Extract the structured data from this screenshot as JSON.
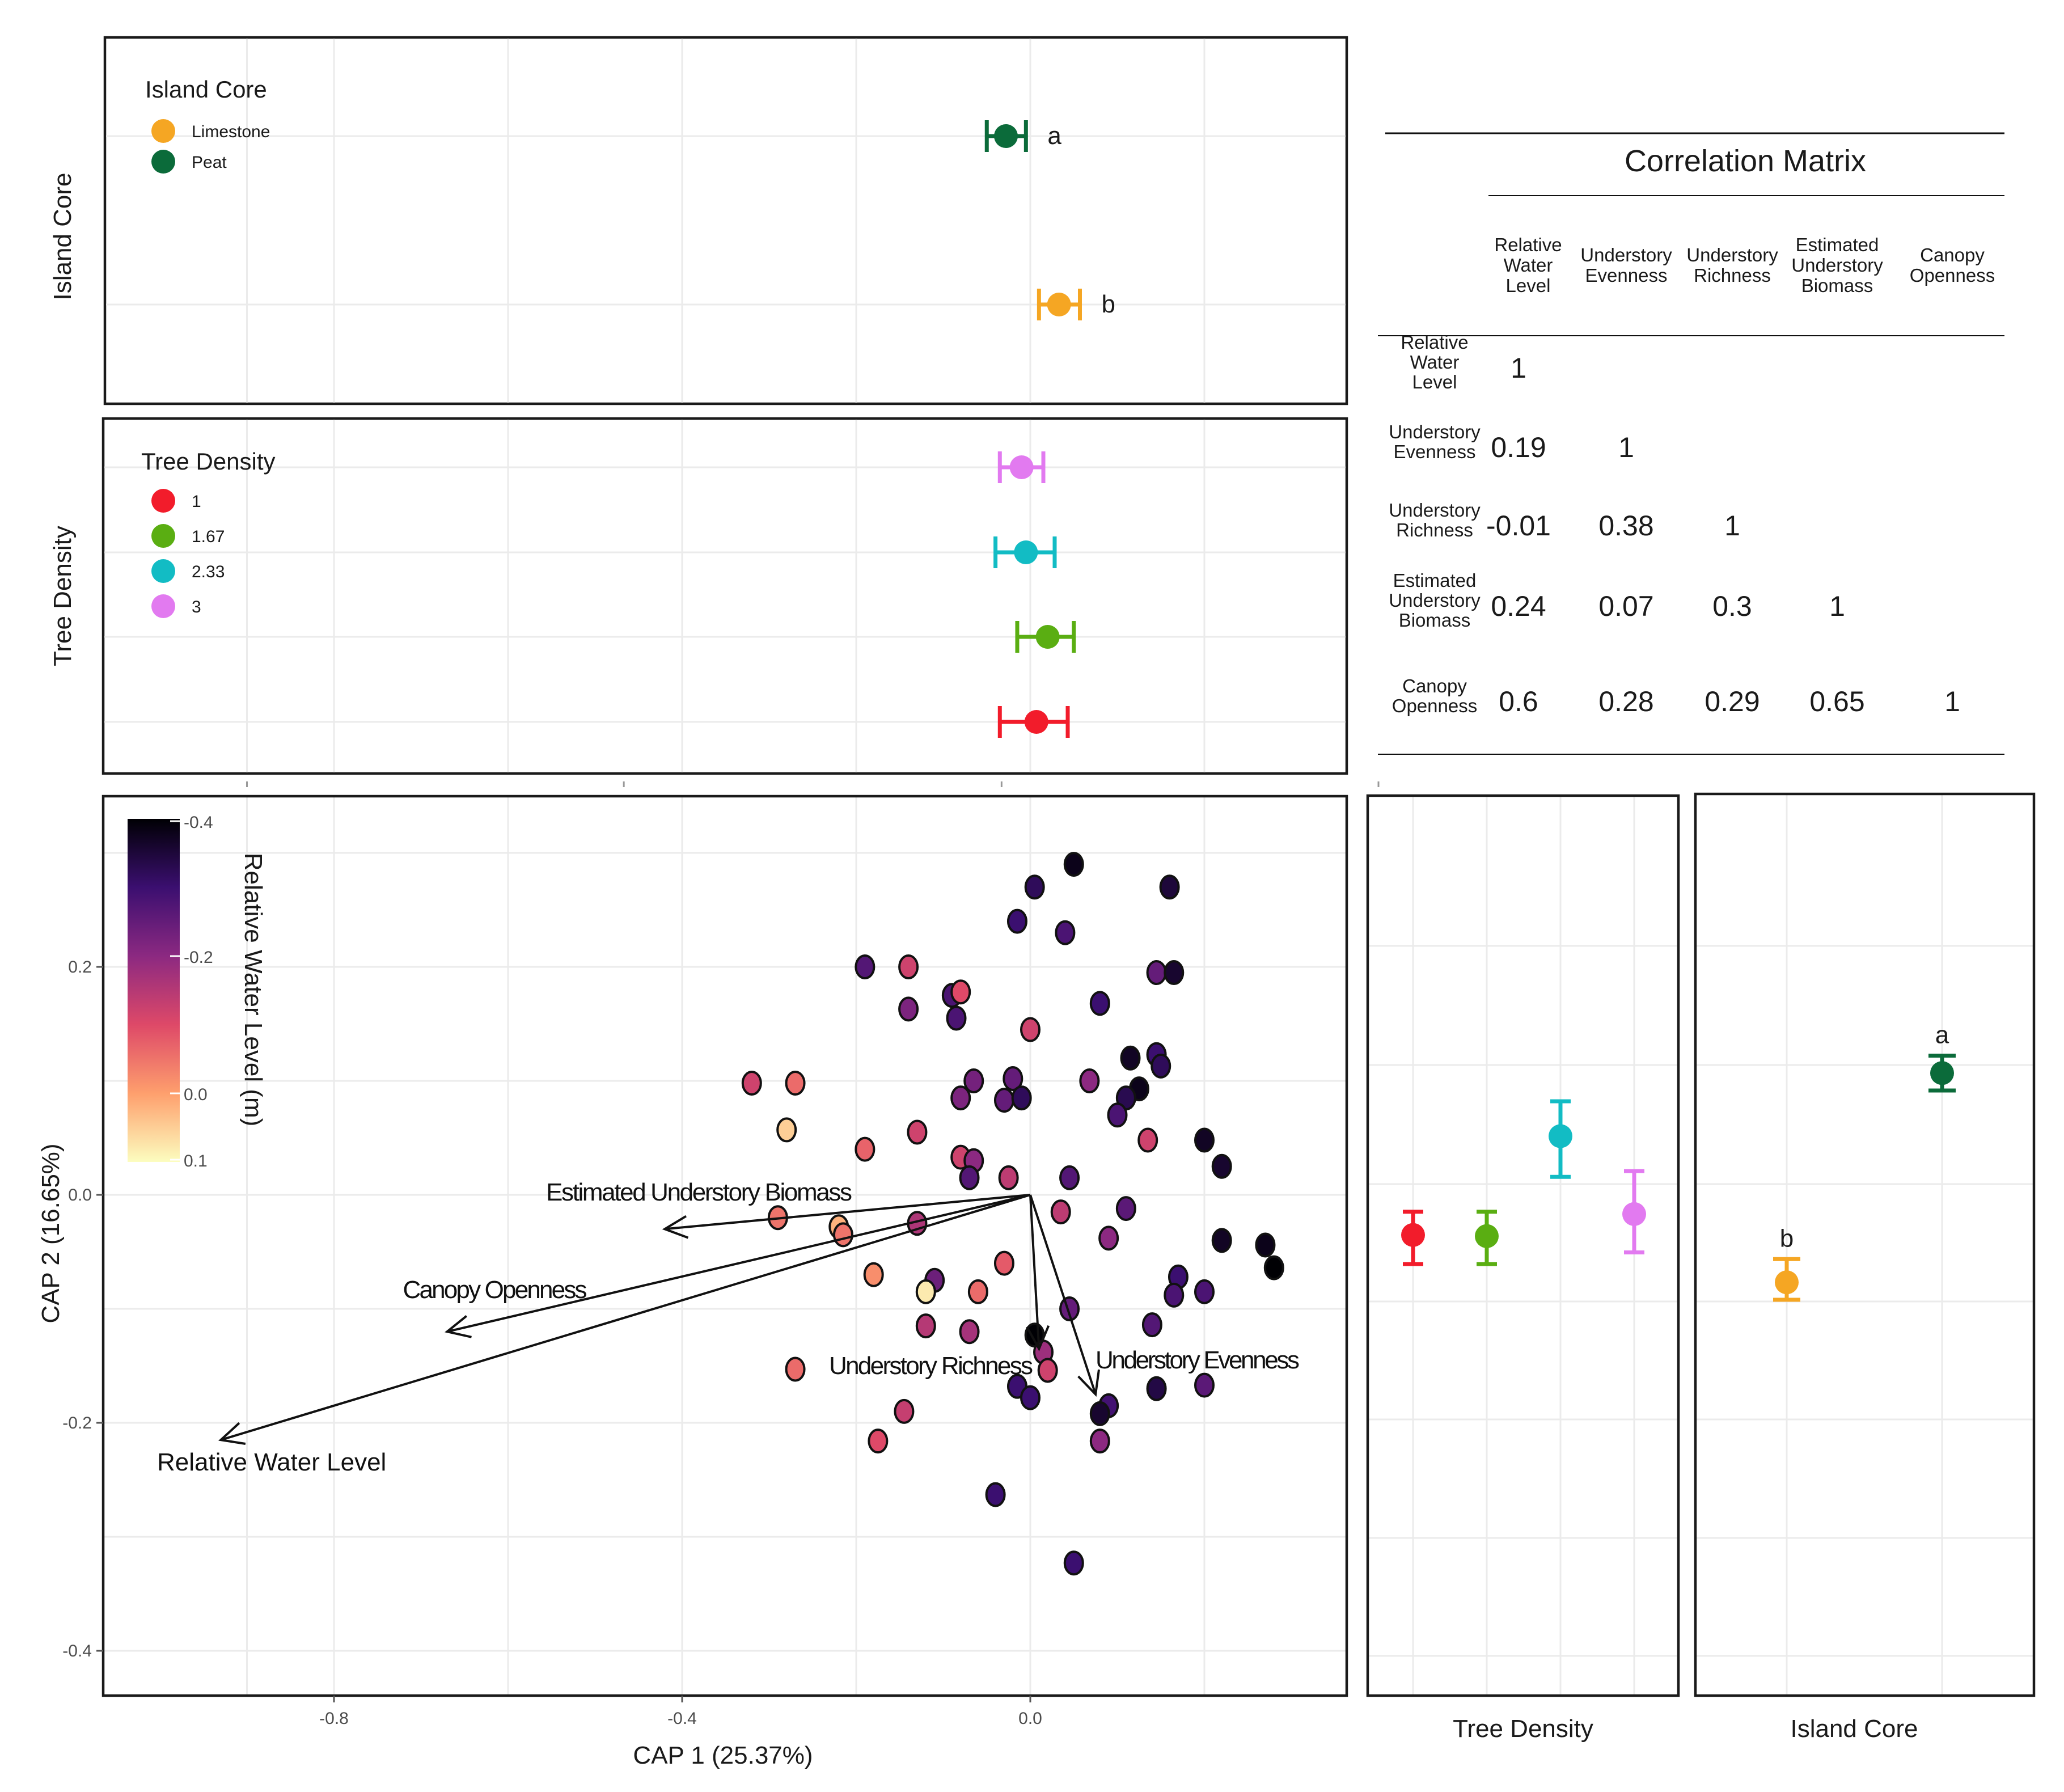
{
  "chart_data": [
    {
      "panel": "island_core_horizontal",
      "type": "scatter",
      "ylabel": "Island Core",
      "legend": {
        "title": "Island Core",
        "items": [
          {
            "label": "Limestone",
            "color": "#f5a623"
          },
          {
            "label": "Peat",
            "color": "#0b6b3a"
          }
        ]
      },
      "points": [
        {
          "group": "Peat",
          "x": -0.028,
          "xmin": -0.05,
          "xmax": -0.005,
          "letter": "a",
          "color": "#0b6b3a"
        },
        {
          "group": "Limestone",
          "x": 0.033,
          "xmin": 0.01,
          "xmax": 0.057,
          "letter": "b",
          "color": "#f5a623"
        }
      ]
    },
    {
      "panel": "tree_density_horizontal",
      "type": "scatter",
      "ylabel": "Tree Density",
      "legend": {
        "title": "Tree Density",
        "items": [
          {
            "label": "1",
            "color": "#f21c2b"
          },
          {
            "label": "1.67",
            "color": "#5aae12"
          },
          {
            "label": "2.33",
            "color": "#12bcc4"
          },
          {
            "label": "3",
            "color": "#e27af0"
          }
        ]
      },
      "points": [
        {
          "group": "3",
          "x": -0.01,
          "xmin": -0.035,
          "xmax": 0.015,
          "color": "#e27af0"
        },
        {
          "group": "2.33",
          "x": -0.005,
          "xmin": -0.04,
          "xmax": 0.028,
          "color": "#12bcc4"
        },
        {
          "group": "1.67",
          "x": 0.02,
          "xmin": -0.015,
          "xmax": 0.05,
          "color": "#5aae12"
        },
        {
          "group": "1",
          "x": 0.007,
          "xmin": -0.035,
          "xmax": 0.043,
          "color": "#f21c2b"
        }
      ]
    },
    {
      "panel": "cap_biplot",
      "type": "scatter",
      "xlabel": "CAP 1 (25.37%)",
      "ylabel": "CAP 2 (16.65%)",
      "xlim": [
        -1.0,
        0.36
      ],
      "ylim": [
        -0.435,
        0.33
      ],
      "xticks": [
        "-0.8",
        "-0.4",
        "0.0"
      ],
      "xtick_values": [
        -0.8,
        -0.4,
        0.0
      ],
      "yticks": [
        "0.2",
        "0.0",
        "-0.2",
        "-0.4"
      ],
      "ytick_values": [
        0.2,
        0.0,
        -0.2,
        -0.4
      ],
      "colorbar": {
        "title": "Relative Water Level (m)",
        "ticks": [
          "-0.4",
          "-0.2",
          "0.0",
          "0.1"
        ],
        "tick_values": [
          -0.4,
          -0.2,
          0.0,
          0.1
        ],
        "range": [
          -0.4,
          0.1
        ],
        "colors": [
          "#000004",
          "#3b0f70",
          "#8c2981",
          "#de4968",
          "#fe9f6d",
          "#fcfdbf"
        ]
      },
      "vectors": [
        {
          "label": "Estimated Understory Biomass",
          "x": -0.42,
          "y": -0.03
        },
        {
          "label": "Canopy Openness",
          "x": -0.67,
          "y": -0.12
        },
        {
          "label": "Relative Water Level",
          "x": -0.93,
          "y": -0.215
        },
        {
          "label": "Understory Richness",
          "x": 0.01,
          "y": -0.135
        },
        {
          "label": "Understory Evenness",
          "x": 0.075,
          "y": -0.175
        }
      ],
      "points": [
        [
          0.05,
          0.29,
          -0.38
        ],
        [
          0.005,
          0.27,
          -0.32
        ],
        [
          0.16,
          0.27,
          -0.35
        ],
        [
          -0.015,
          0.24,
          -0.3
        ],
        [
          0.04,
          0.23,
          -0.28
        ],
        [
          -0.19,
          0.2,
          -0.27
        ],
        [
          -0.14,
          0.2,
          -0.12
        ],
        [
          0.145,
          0.195,
          -0.25
        ],
        [
          0.165,
          0.195,
          -0.36
        ],
        [
          -0.09,
          0.175,
          -0.28
        ],
        [
          -0.08,
          0.178,
          -0.1
        ],
        [
          -0.14,
          0.163,
          -0.22
        ],
        [
          0.08,
          0.168,
          -0.3
        ],
        [
          -0.085,
          0.155,
          -0.28
        ],
        [
          0.0,
          0.145,
          -0.12
        ],
        [
          0.115,
          0.12,
          -0.37
        ],
        [
          0.145,
          0.123,
          -0.3
        ],
        [
          0.15,
          0.113,
          -0.32
        ],
        [
          -0.32,
          0.098,
          -0.12
        ],
        [
          -0.27,
          0.098,
          -0.06
        ],
        [
          -0.065,
          0.1,
          -0.23
        ],
        [
          -0.02,
          0.102,
          -0.25
        ],
        [
          0.068,
          0.1,
          -0.2
        ],
        [
          0.125,
          0.093,
          -0.38
        ],
        [
          -0.08,
          0.085,
          -0.22
        ],
        [
          -0.03,
          0.083,
          -0.25
        ],
        [
          -0.01,
          0.085,
          -0.32
        ],
        [
          0.11,
          0.085,
          -0.33
        ],
        [
          0.1,
          0.07,
          -0.28
        ],
        [
          -0.28,
          0.057,
          0.05
        ],
        [
          -0.13,
          0.055,
          -0.12
        ],
        [
          -0.19,
          0.04,
          -0.07
        ],
        [
          0.135,
          0.048,
          -0.12
        ],
        [
          0.2,
          0.048,
          -0.37
        ],
        [
          -0.08,
          0.033,
          -0.12
        ],
        [
          -0.065,
          0.03,
          -0.2
        ],
        [
          0.22,
          0.025,
          -0.36
        ],
        [
          -0.07,
          0.015,
          -0.27
        ],
        [
          -0.025,
          0.015,
          -0.14
        ],
        [
          0.045,
          0.015,
          -0.27
        ],
        [
          -0.29,
          -0.02,
          -0.05
        ],
        [
          -0.22,
          -0.028,
          0.02
        ],
        [
          -0.13,
          -0.025,
          -0.16
        ],
        [
          -0.215,
          -0.035,
          -0.05
        ],
        [
          0.035,
          -0.015,
          -0.14
        ],
        [
          0.11,
          -0.012,
          -0.26
        ],
        [
          0.09,
          -0.038,
          -0.2
        ],
        [
          0.22,
          -0.04,
          -0.37
        ],
        [
          0.27,
          -0.044,
          -0.38
        ],
        [
          0.28,
          -0.064,
          -0.4
        ],
        [
          -0.18,
          -0.07,
          -0.02
        ],
        [
          -0.11,
          -0.075,
          -0.24
        ],
        [
          -0.12,
          -0.085,
          0.08
        ],
        [
          -0.06,
          -0.085,
          -0.06
        ],
        [
          -0.03,
          -0.06,
          -0.08
        ],
        [
          0.17,
          -0.072,
          -0.3
        ],
        [
          0.165,
          -0.088,
          -0.28
        ],
        [
          0.2,
          -0.085,
          -0.28
        ],
        [
          -0.12,
          -0.115,
          -0.15
        ],
        [
          -0.07,
          -0.12,
          -0.17
        ],
        [
          0.045,
          -0.1,
          -0.25
        ],
        [
          0.14,
          -0.114,
          -0.27
        ],
        [
          0.005,
          -0.123,
          -0.42
        ],
        [
          0.015,
          -0.138,
          -0.18
        ],
        [
          0.02,
          -0.154,
          -0.12
        ],
        [
          -0.27,
          -0.153,
          -0.06
        ],
        [
          -0.015,
          -0.168,
          -0.3
        ],
        [
          0.145,
          -0.17,
          -0.34
        ],
        [
          0.2,
          -0.167,
          -0.26
        ],
        [
          0.0,
          -0.178,
          -0.3
        ],
        [
          0.09,
          -0.185,
          -0.29
        ],
        [
          0.08,
          -0.192,
          -0.36
        ],
        [
          -0.145,
          -0.19,
          -0.13
        ],
        [
          -0.175,
          -0.216,
          -0.1
        ],
        [
          0.08,
          -0.216,
          -0.2
        ],
        [
          -0.04,
          -0.263,
          -0.3
        ],
        [
          0.05,
          -0.323,
          -0.3
        ]
      ]
    },
    {
      "panel": "tree_density_vertical",
      "type": "scatter",
      "xlabel": "Tree Density",
      "points": [
        {
          "group": "1",
          "y": -0.015,
          "ymin": -0.04,
          "ymax": 0.005,
          "color": "#f21c2b"
        },
        {
          "group": "1.67",
          "y": -0.016,
          "ymin": -0.04,
          "ymax": 0.005,
          "color": "#5aae12"
        },
        {
          "group": "2.33",
          "y": 0.07,
          "ymin": 0.035,
          "ymax": 0.1,
          "color": "#12bcc4"
        },
        {
          "group": "3",
          "y": 0.003,
          "ymin": -0.03,
          "ymax": 0.04,
          "color": "#e27af0"
        }
      ]
    },
    {
      "panel": "island_core_vertical",
      "type": "scatter",
      "xlabel": "Island Core",
      "points": [
        {
          "group": "Limestone",
          "y": -0.085,
          "ymin": -0.1,
          "ymax": -0.065,
          "letter": "b",
          "color": "#f5a623"
        },
        {
          "group": "Peat",
          "y": 0.095,
          "ymin": 0.08,
          "ymax": 0.11,
          "letter": "a",
          "color": "#0b6b3a"
        }
      ]
    },
    {
      "panel": "correlation_matrix",
      "type": "table",
      "title": "Correlation Matrix",
      "columns": [
        [
          "Relative",
          "Water",
          "Level"
        ],
        [
          "Understory",
          "Evenness"
        ],
        [
          "Understory",
          "Richness"
        ],
        [
          "Estimated",
          "Understory",
          "Biomass"
        ],
        [
          "Canopy",
          "Openness"
        ]
      ],
      "rows": [
        {
          "label": [
            "Relative",
            "Water",
            "Level"
          ],
          "values": [
            "1"
          ]
        },
        {
          "label": [
            "Understory",
            "Evenness"
          ],
          "values": [
            "0.19",
            "1"
          ]
        },
        {
          "label": [
            "Understory",
            "Richness"
          ],
          "values": [
            "-0.01",
            "0.38",
            "1"
          ]
        },
        {
          "label": [
            "Estimated",
            "Understory",
            "Biomass"
          ],
          "values": [
            "0.24",
            "0.07",
            "0.3",
            "1"
          ]
        },
        {
          "label": [
            "Canopy",
            "Openness"
          ],
          "values": [
            "0.6",
            "0.28",
            "0.29",
            "0.65",
            "1"
          ]
        }
      ]
    }
  ]
}
